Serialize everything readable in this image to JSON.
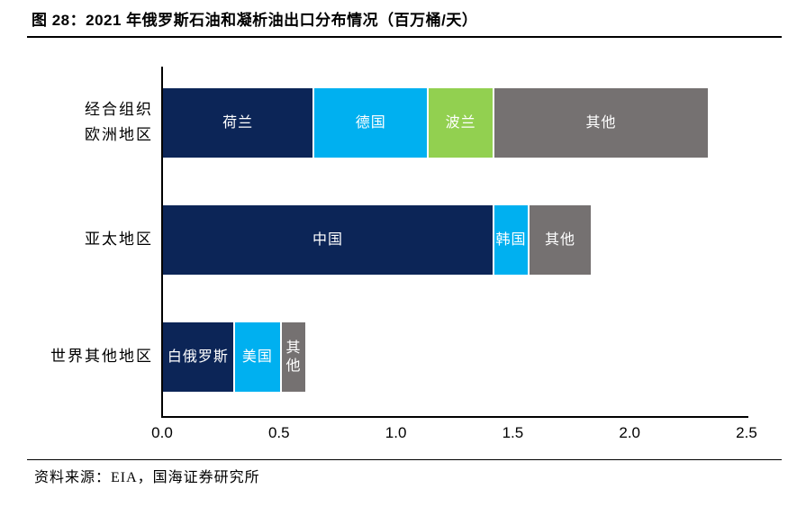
{
  "header": {
    "title": "图 28：2021 年俄罗斯石油和凝析油出口分布情况（百万桶/天）"
  },
  "chart_data": {
    "type": "bar",
    "orientation": "horizontal",
    "stacked": true,
    "title": "2021 年俄罗斯石油和凝析油出口分布情况",
    "unit_label": "百万桶/天",
    "xlabel": "",
    "ylabel": "",
    "xlim": [
      0,
      2.5
    ],
    "x_tick_values": [
      0,
      0.5,
      1.0,
      1.5,
      2.0,
      2.5
    ],
    "x_tick_labels": [
      "0.0",
      "0.5",
      "1.0",
      "1.5",
      "2.0",
      "2.5"
    ],
    "grid": false,
    "legend": false,
    "palette": {
      "navy": "#0c2557",
      "light_blue": "#00b0f0",
      "green": "#92d050",
      "gray": "#757171"
    },
    "categories": [
      "经合组织欧洲地区",
      "亚太地区",
      "世界其他地区"
    ],
    "rows": [
      {
        "category": "经合组织欧洲地区",
        "label_lines": [
          "经合组织",
          "欧洲地区"
        ],
        "total": 2.33,
        "segments": [
          {
            "label": "荷兰",
            "value": 0.64,
            "color": "#0c2557"
          },
          {
            "label": "德国",
            "value": 0.49,
            "color": "#00b0f0"
          },
          {
            "label": "波兰",
            "value": 0.28,
            "color": "#92d050"
          },
          {
            "label": "其他",
            "value": 0.92,
            "color": "#757171"
          }
        ]
      },
      {
        "category": "亚太地区",
        "label_lines": [
          "亚太地区"
        ],
        "total": 1.83,
        "segments": [
          {
            "label": "中国",
            "value": 1.41,
            "color": "#0c2557"
          },
          {
            "label": "韩国",
            "value": 0.15,
            "color": "#00b0f0"
          },
          {
            "label": "其他",
            "value": 0.27,
            "color": "#757171"
          }
        ]
      },
      {
        "category": "世界其他地区",
        "label_lines": [
          "世界其他地区"
        ],
        "total": 0.61,
        "segments": [
          {
            "label": "白俄罗斯",
            "value": 0.3,
            "color": "#0c2557"
          },
          {
            "label": "美国",
            "value": 0.2,
            "color": "#00b0f0"
          },
          {
            "label": "其他",
            "value": 0.11,
            "color": "#757171"
          }
        ]
      }
    ]
  },
  "footer": {
    "source": "资料来源：EIA，国海证券研究所"
  }
}
